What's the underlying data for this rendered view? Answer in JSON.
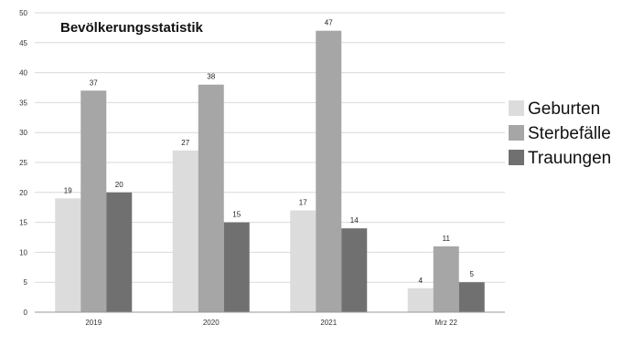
{
  "chart_data": {
    "type": "bar",
    "title": "Bevölkerungsstatistik",
    "xlabel": "",
    "ylabel": "",
    "categories": [
      "2019",
      "2020",
      "2021",
      "Mrz 22"
    ],
    "series": [
      {
        "name": "Geburten",
        "values": [
          19,
          27,
          17,
          4
        ],
        "color": "#dcdcdc"
      },
      {
        "name": "Sterbefälle",
        "values": [
          37,
          38,
          47,
          11
        ],
        "color": "#a6a6a6"
      },
      {
        "name": "Trauungen",
        "values": [
          20,
          15,
          14,
          5
        ],
        "color": "#707070"
      }
    ],
    "ylim": [
      0,
      50
    ],
    "yticks": [
      0,
      5,
      10,
      15,
      20,
      25,
      30,
      35,
      40,
      45,
      50
    ],
    "grid": true,
    "legend_position": "right"
  }
}
